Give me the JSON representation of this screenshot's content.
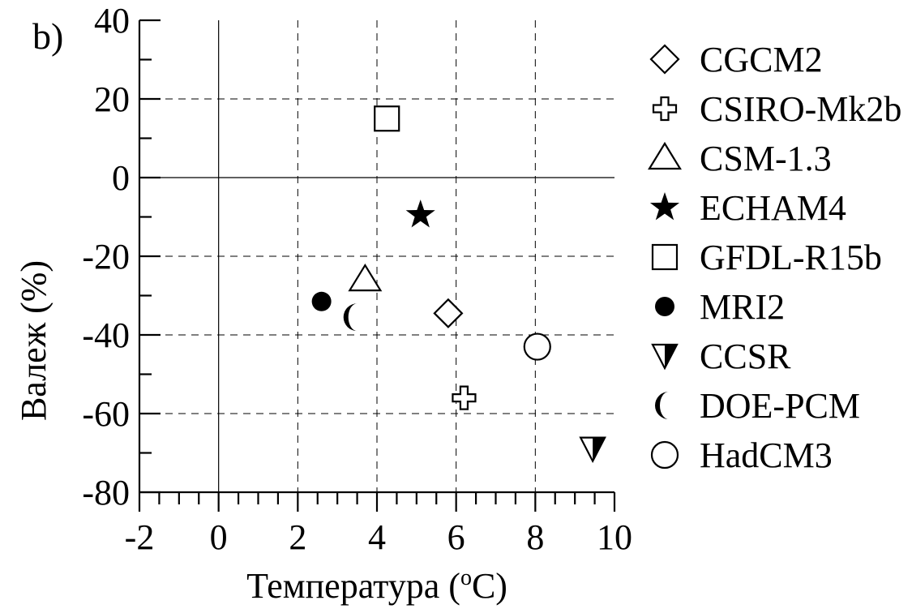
{
  "chart_data": {
    "type": "scatter",
    "panel_label": "b)",
    "xlabel_main": "Температура (",
    "xlabel_sup": "o",
    "xlabel_end": "C)",
    "ylabel": "Валеж (%)",
    "xlim": [
      -2,
      10
    ],
    "ylim": [
      -80,
      40
    ],
    "xticks": [
      -2,
      0,
      2,
      4,
      6,
      8,
      10
    ],
    "yticks": [
      -80,
      -60,
      -40,
      -20,
      0,
      20,
      40
    ],
    "x_minor_step": 0.5,
    "y_minor_step": 10,
    "grid": true,
    "legend_position": "right",
    "series": [
      {
        "name": "CGCM2",
        "marker": "diamond-open",
        "x": 5.8,
        "y": -34.5
      },
      {
        "name": "CSIRO-Mk2b",
        "marker": "cross-open",
        "x": 6.2,
        "y": -56
      },
      {
        "name": "CSM-1.3",
        "marker": "triangle-open",
        "x": 3.7,
        "y": -26
      },
      {
        "name": "ECHAM4",
        "marker": "star-filled",
        "x": 5.1,
        "y": -9.5
      },
      {
        "name": "GFDL-R15b",
        "marker": "square-open",
        "x": 4.25,
        "y": 15
      },
      {
        "name": "MRI2",
        "marker": "circle-filled",
        "x": 2.6,
        "y": -31.5
      },
      {
        "name": "CCSR",
        "marker": "triangle-down-half",
        "x": 9.45,
        "y": -69
      },
      {
        "name": "DOE-PCM",
        "marker": "crescent",
        "x": 3.4,
        "y": -35.5
      },
      {
        "name": "HadCM3",
        "marker": "circle-open",
        "x": 8.05,
        "y": -43
      }
    ]
  }
}
